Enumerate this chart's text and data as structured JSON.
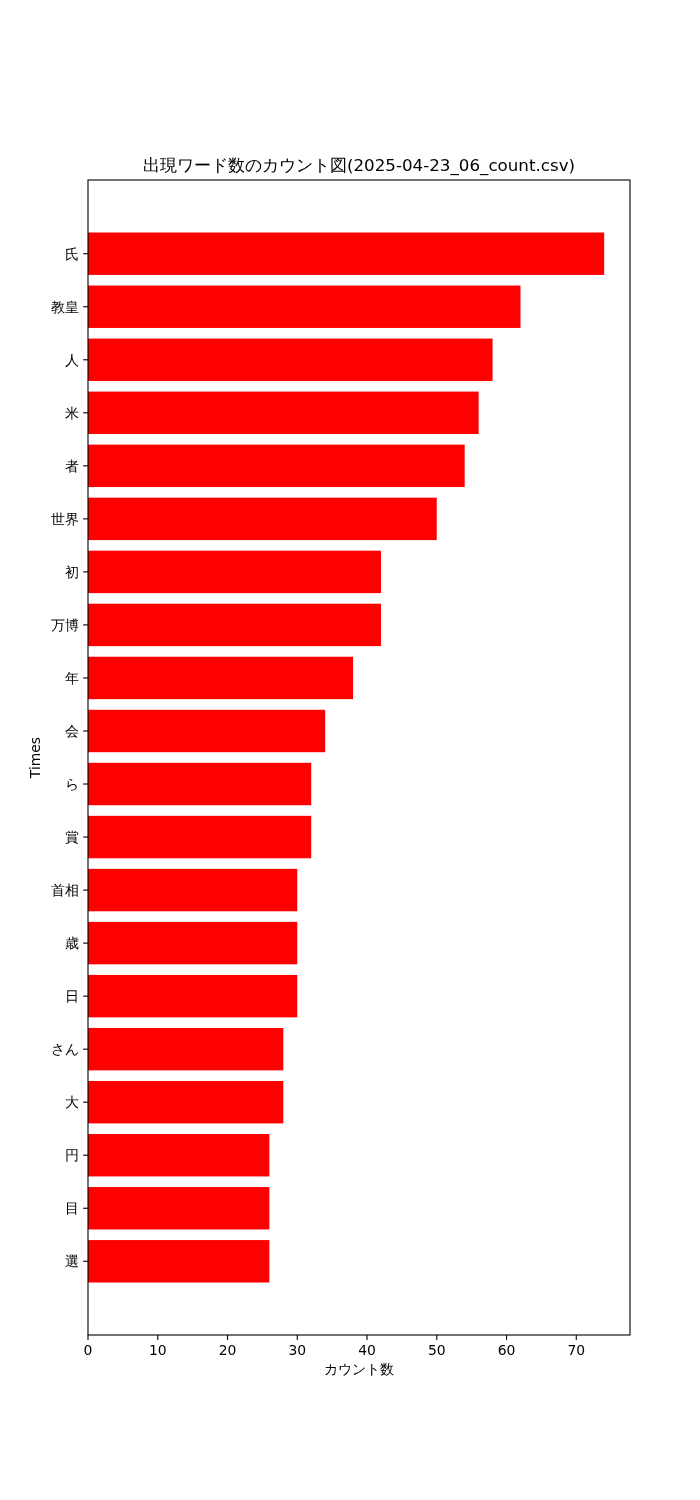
{
  "chart_data": {
    "type": "bar",
    "orientation": "horizontal",
    "title": "出現ワード数のカウント図(2025-04-23_06_count.csv)",
    "xlabel": "カウント数",
    "ylabel": "Times",
    "categories": [
      "氏",
      "教皇",
      "人",
      "米",
      "者",
      "世界",
      "初",
      "万博",
      "年",
      "会",
      "ら",
      "賞",
      "首相",
      "歳",
      "日",
      "さん",
      "大",
      "円",
      "目",
      "選"
    ],
    "values": [
      74,
      62,
      58,
      56,
      54,
      50,
      42,
      42,
      38,
      34,
      32,
      32,
      30,
      30,
      30,
      28,
      28,
      26,
      26,
      26
    ],
    "color": "#ff0000",
    "xlim": [
      0,
      77.7
    ],
    "xticks": [
      0,
      10,
      20,
      30,
      40,
      50,
      60,
      70
    ]
  }
}
